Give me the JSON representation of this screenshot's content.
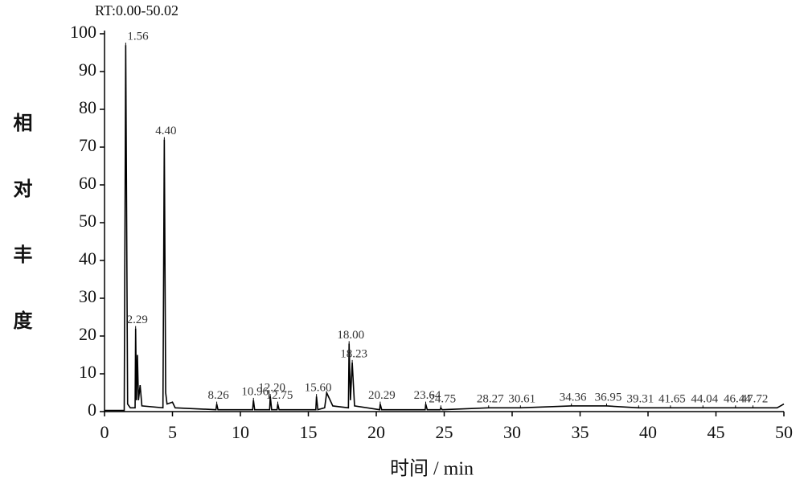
{
  "chart_data": {
    "type": "line",
    "title": "RT:0.00-50.02",
    "x_label": "时间 / min",
    "y_label": "相对丰度",
    "color": "#000000",
    "x": [
      0,
      1.45,
      1.56,
      1.7,
      1.9,
      2.25,
      2.29,
      2.35,
      2.42,
      2.5,
      2.62,
      2.75,
      4.3,
      4.4,
      4.5,
      4.6,
      5.0,
      5.2,
      8.2,
      8.26,
      8.35,
      10.9,
      10.96,
      11.05,
      12.15,
      12.2,
      12.3,
      12.7,
      12.75,
      12.85,
      15.55,
      15.6,
      15.7,
      16.2,
      16.35,
      16.8,
      17.95,
      18.0,
      18.1,
      18.23,
      18.4,
      20.25,
      20.29,
      20.4,
      23.6,
      23.64,
      23.75,
      24.7,
      24.75,
      24.85,
      28.27,
      30.61,
      34.36,
      36.95,
      39.31,
      41.65,
      44.04,
      46.44,
      47.72,
      49.5,
      50
    ],
    "values": [
      0.3,
      0.3,
      97,
      2,
      1,
      1,
      22,
      3,
      15,
      3,
      7,
      1.5,
      1,
      72,
      5,
      2,
      2.5,
      1,
      0.5,
      2,
      0.5,
      0.5,
      3,
      0.5,
      0.5,
      4,
      0.5,
      0.5,
      2,
      0.5,
      0.5,
      4,
      0.5,
      1,
      5,
      1.5,
      1,
      18,
      3,
      13,
      1.5,
      0.5,
      2,
      0.5,
      0.5,
      2,
      0.5,
      0.5,
      1,
      0.5,
      1,
      1,
      1.5,
      1.5,
      1,
      1,
      1,
      1,
      1,
      1,
      2
    ],
    "peaks": {
      "x": [
        1.56,
        2.29,
        4.4,
        8.26,
        10.96,
        12.2,
        12.75,
        15.6,
        18.0,
        18.23,
        20.29,
        23.64,
        24.75,
        28.27,
        30.61,
        34.36,
        36.95,
        39.31,
        41.65,
        44.04,
        46.44,
        47.72
      ],
      "values": [
        97,
        22,
        72,
        2,
        3,
        4,
        2,
        4,
        18,
        13,
        2,
        2,
        1,
        1,
        1,
        1.5,
        1.5,
        1,
        1,
        1,
        1,
        1
      ],
      "labels": [
        "1.56",
        "2.29",
        "4.40",
        "8.26",
        "10.96",
        "12.20",
        "12.75",
        "15.60",
        "18.00",
        "18.23",
        "20.29",
        "23.64",
        "24.75",
        "28.27",
        "30.61",
        "34.36",
        "36.95",
        "39.31",
        "41.65",
        "44.04",
        "46.44",
        "47.72"
      ]
    },
    "xlim": [
      0,
      50
    ],
    "xticks": [
      0,
      5,
      10,
      15,
      20,
      25,
      30,
      35,
      40,
      45,
      50
    ],
    "ylim": [
      0,
      100
    ],
    "yticks": [
      0,
      10,
      20,
      30,
      40,
      50,
      60,
      70,
      80,
      90,
      100
    ]
  }
}
